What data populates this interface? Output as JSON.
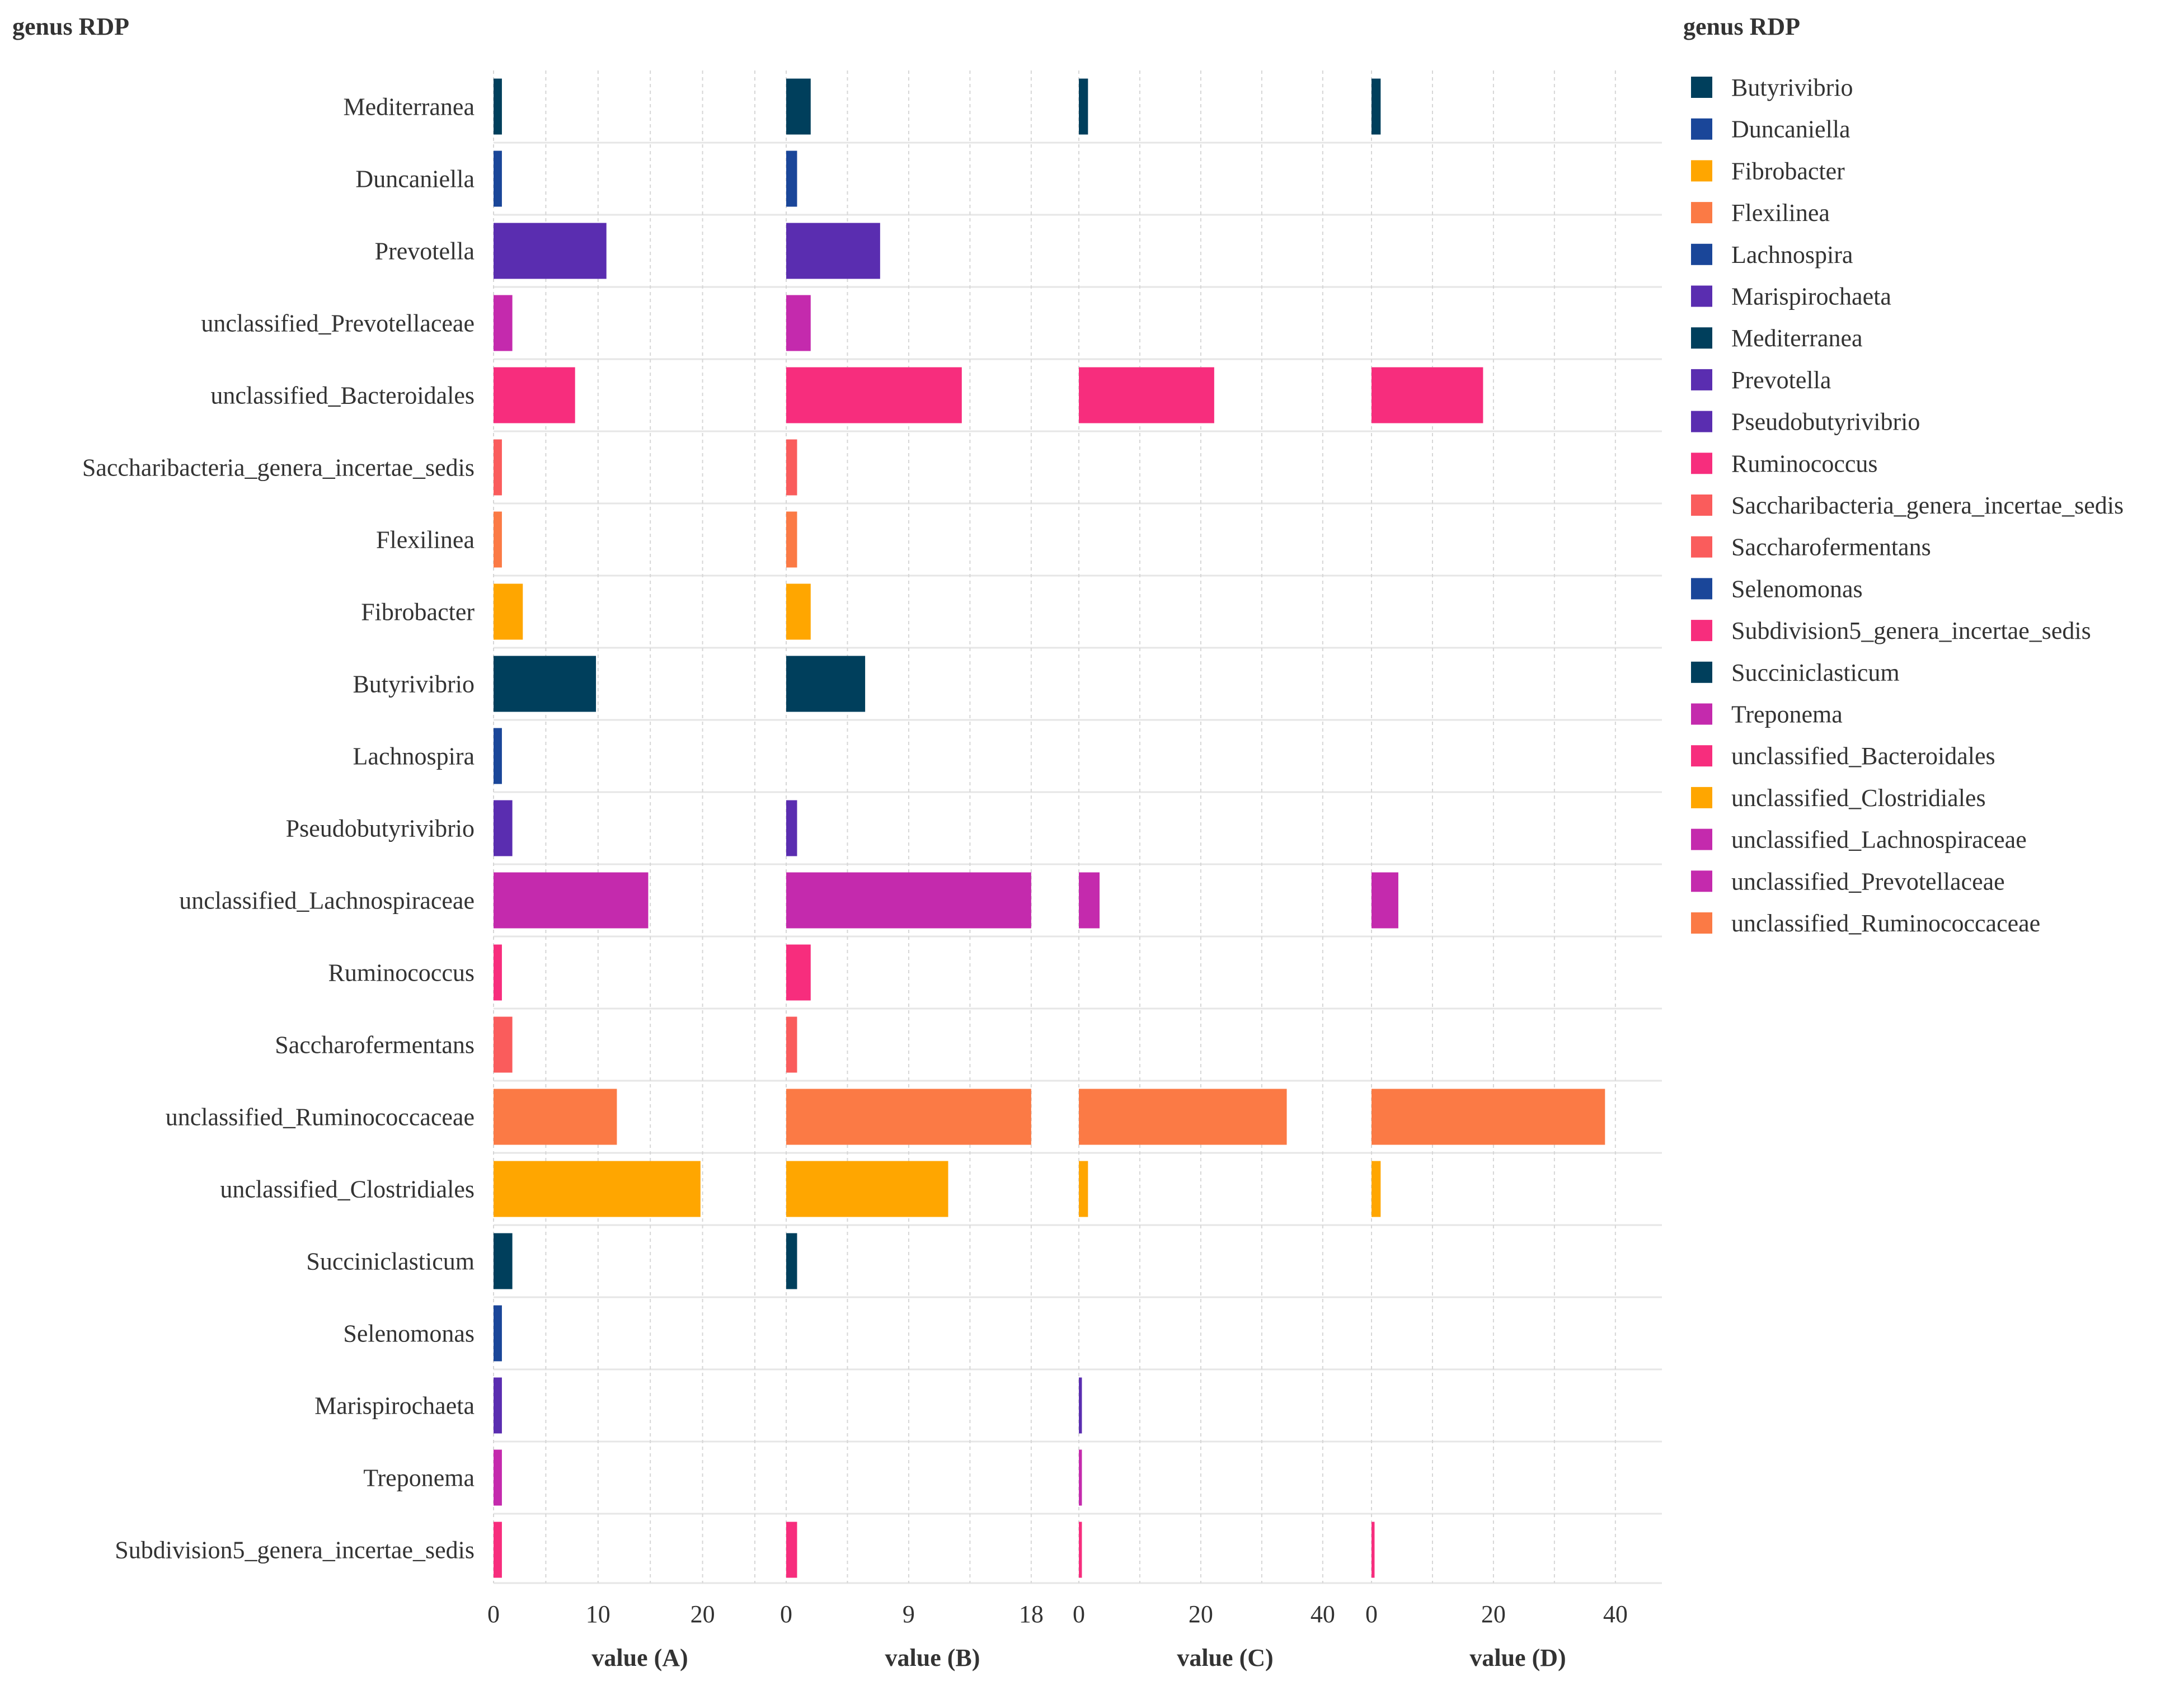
{
  "chart_data": {
    "type": "bar",
    "orientation": "horizontal",
    "title": "genus RDP",
    "legend_title": "genus RDP",
    "legend_position": "right",
    "categories": [
      "Mediterranea",
      "Duncaniella",
      "Prevotella",
      "unclassified_Prevotellaceae",
      "unclassified_Bacteroidales",
      "Saccharibacteria_genera_incertae_sedis",
      "Flexilinea",
      "Fibrobacter",
      "Butyrivibrio",
      "Lachnospira",
      "Pseudobutyrivibrio",
      "unclassified_Lachnospiraceae",
      "Ruminococcus",
      "Saccharofermentans",
      "unclassified_Ruminococcaceae",
      "unclassified_Clostridiales",
      "Succiniclasticum",
      "Selenomonas",
      "Marispirochaeta",
      "Treponema",
      "Subdivision5_genera_incertae_sedis"
    ],
    "colors": {
      "Mediterranea": "#003f5c",
      "Duncaniella": "#1a4699",
      "Prevotella": "#5a2db0",
      "unclassified_Prevotellaceae": "#c42aad",
      "unclassified_Bacteroidales": "#f72d7d",
      "Saccharibacteria_genera_incertae_sedis": "#fa5c5c",
      "Flexilinea": "#fb7a45",
      "Fibrobacter": "#ffa600",
      "Butyrivibrio": "#003f5c",
      "Lachnospira": "#1a4699",
      "Pseudobutyrivibrio": "#5a2db0",
      "unclassified_Lachnospiraceae": "#c42aad",
      "Ruminococcus": "#f72d7d",
      "Saccharofermentans": "#fa5c5c",
      "unclassified_Ruminococcaceae": "#fb7a45",
      "unclassified_Clostridiales": "#ffa600",
      "Succiniclasticum": "#003f5c",
      "Selenomonas": "#1a4699",
      "Marispirochaeta": "#5a2db0",
      "Treponema": "#c42aad",
      "Subdivision5_genera_incertae_sedis": "#f72d7d"
    },
    "panels": [
      {
        "name": "value (A)",
        "xlim": [
          0,
          28
        ],
        "ticks": [
          0,
          10,
          20
        ],
        "values": [
          0.8,
          0.8,
          10.8,
          1.8,
          7.8,
          0.8,
          0.8,
          2.8,
          9.8,
          0.8,
          1.8,
          14.8,
          0.8,
          1.8,
          11.8,
          19.8,
          1.8,
          0.8,
          0.8,
          0.8,
          0.8
        ]
      },
      {
        "name": "value (B)",
        "xlim": [
          0,
          21.5
        ],
        "ticks": [
          0,
          9,
          18
        ],
        "values": [
          1.8,
          0.8,
          6.9,
          1.8,
          12.9,
          0.8,
          0.8,
          1.8,
          5.8,
          0,
          0.8,
          18.0,
          1.8,
          0.8,
          18.0,
          11.9,
          0.8,
          0,
          0,
          0,
          0.8
        ]
      },
      {
        "name": "value (C)",
        "xlim": [
          0,
          48
        ],
        "ticks": [
          0,
          20,
          40
        ],
        "values": [
          1.5,
          0,
          0,
          0,
          22.2,
          0,
          0,
          0,
          0,
          0,
          0,
          3.4,
          0,
          0,
          34.1,
          1.5,
          0,
          0,
          0.5,
          0.5,
          0.5
        ]
      },
      {
        "name": "value (D)",
        "xlim": [
          0,
          48
        ],
        "ticks": [
          0,
          20,
          40
        ],
        "values": [
          1.5,
          0,
          0,
          0,
          18.3,
          0,
          0,
          0,
          0,
          0,
          0,
          4.4,
          0,
          0,
          38.3,
          1.5,
          0,
          0,
          0,
          0,
          0.5
        ]
      }
    ],
    "legend": [
      {
        "label": "Butyrivibrio",
        "color": "#003f5c"
      },
      {
        "label": "Duncaniella",
        "color": "#1a4699"
      },
      {
        "label": "Fibrobacter",
        "color": "#ffa600"
      },
      {
        "label": "Flexilinea",
        "color": "#fb7a45"
      },
      {
        "label": "Lachnospira",
        "color": "#1a4699"
      },
      {
        "label": "Marispirochaeta",
        "color": "#5a2db0"
      },
      {
        "label": "Mediterranea",
        "color": "#003f5c"
      },
      {
        "label": "Prevotella",
        "color": "#5a2db0"
      },
      {
        "label": "Pseudobutyrivibrio",
        "color": "#5a2db0"
      },
      {
        "label": "Ruminococcus",
        "color": "#f72d7d"
      },
      {
        "label": "Saccharibacteria_genera_incertae_sedis",
        "color": "#fa5c5c"
      },
      {
        "label": "Saccharofermentans",
        "color": "#fa5c5c"
      },
      {
        "label": "Selenomonas",
        "color": "#1a4699"
      },
      {
        "label": "Subdivision5_genera_incertae_sedis",
        "color": "#f72d7d"
      },
      {
        "label": "Succiniclasticum",
        "color": "#003f5c"
      },
      {
        "label": "Treponema",
        "color": "#c42aad"
      },
      {
        "label": "unclassified_Bacteroidales",
        "color": "#f72d7d"
      },
      {
        "label": "unclassified_Clostridiales",
        "color": "#ffa600"
      },
      {
        "label": "unclassified_Lachnospiraceae",
        "color": "#c42aad"
      },
      {
        "label": "unclassified_Prevotellaceae",
        "color": "#c42aad"
      },
      {
        "label": "unclassified_Ruminococcaceae",
        "color": "#fb7a45"
      }
    ]
  }
}
